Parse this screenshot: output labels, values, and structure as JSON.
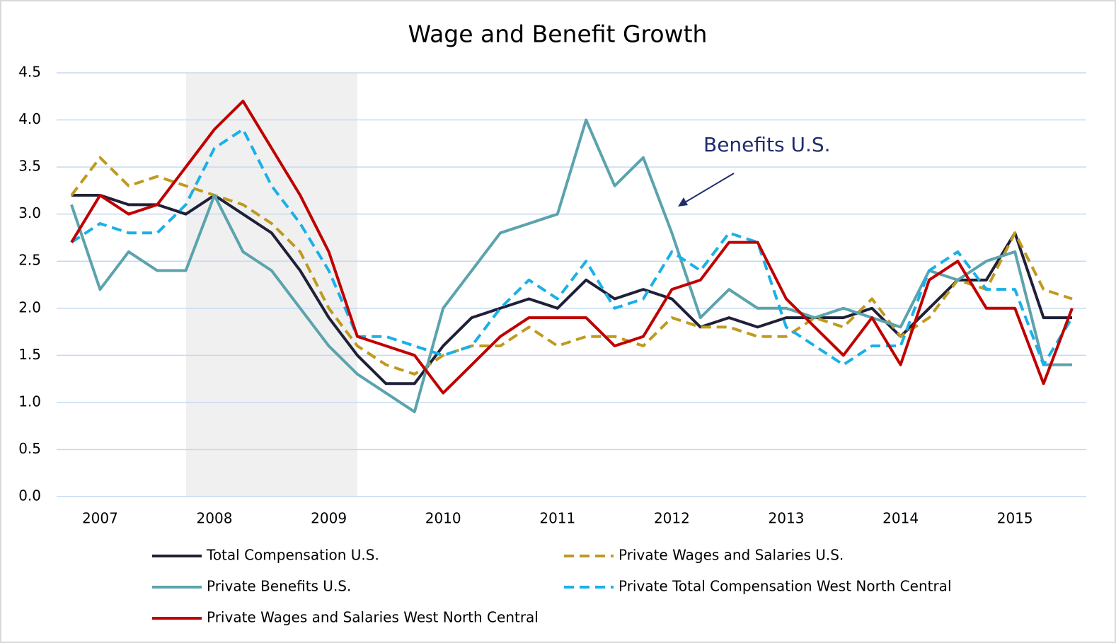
{
  "chart_data": {
    "type": "line",
    "title": "Wage and Benefit Growth",
    "annotation": "Benefits U.S.",
    "categories": [
      null,
      "2007",
      null,
      null,
      null,
      "2008",
      null,
      null,
      null,
      "2009",
      null,
      null,
      null,
      "2010",
      null,
      null,
      null,
      "2011",
      null,
      null,
      null,
      "2012",
      null,
      null,
      null,
      "2013",
      null,
      null,
      null,
      "2014",
      null,
      null,
      null,
      "2015",
      null,
      null
    ],
    "series": [
      {
        "name": "Total Compensation U.S.",
        "color": "#1f2038",
        "style": "solid",
        "values": [
          3.2,
          3.2,
          3.1,
          3.1,
          3.0,
          3.2,
          3.0,
          2.8,
          2.4,
          1.9,
          1.5,
          1.2,
          1.2,
          1.6,
          1.9,
          2.0,
          2.1,
          2.0,
          2.3,
          2.1,
          2.2,
          2.1,
          1.8,
          1.9,
          1.8,
          1.9,
          1.9,
          1.9,
          2.0,
          1.7,
          2.0,
          2.3,
          2.3,
          2.8,
          1.9,
          1.9
        ]
      },
      {
        "name": "Private Wages and Salaries U.S.",
        "color": "#bf9a1e",
        "style": "dashed",
        "values": [
          3.2,
          3.6,
          3.3,
          3.4,
          3.3,
          3.2,
          3.1,
          2.9,
          2.6,
          2.0,
          1.6,
          1.4,
          1.3,
          1.5,
          1.6,
          1.6,
          1.8,
          1.6,
          1.7,
          1.7,
          1.6,
          1.9,
          1.8,
          1.8,
          1.7,
          1.7,
          1.9,
          1.8,
          2.1,
          1.7,
          1.9,
          2.3,
          2.2,
          2.8,
          2.2,
          2.1
        ]
      },
      {
        "name": "Private Benefits U.S.",
        "color": "#5ba3ad",
        "style": "solid",
        "values": [
          3.1,
          2.2,
          2.6,
          2.4,
          2.4,
          3.2,
          2.6,
          2.4,
          2.0,
          1.6,
          1.3,
          1.1,
          0.9,
          2.0,
          2.4,
          2.8,
          2.9,
          3.0,
          4.0,
          3.3,
          3.6,
          2.8,
          1.9,
          2.2,
          2.0,
          2.0,
          1.9,
          2.0,
          1.9,
          1.8,
          2.4,
          2.3,
          2.5,
          2.6,
          1.4,
          1.4
        ]
      },
      {
        "name": "Private Total Compensation West North Central",
        "color": "#1ab0e8",
        "style": "dashed",
        "values": [
          2.7,
          2.9,
          2.8,
          2.8,
          3.1,
          3.7,
          3.9,
          3.3,
          2.9,
          2.4,
          1.7,
          1.7,
          1.6,
          1.5,
          1.6,
          2.0,
          2.3,
          2.1,
          2.5,
          2.0,
          2.1,
          2.6,
          2.4,
          2.8,
          2.7,
          1.8,
          1.6,
          1.4,
          1.6,
          1.6,
          2.4,
          2.6,
          2.2,
          2.2,
          1.4,
          1.9
        ]
      },
      {
        "name": "Private Wages and Salaries West North Central",
        "color": "#c00000",
        "style": "solid",
        "values": [
          2.7,
          3.2,
          3.0,
          3.1,
          3.5,
          3.9,
          4.2,
          3.7,
          3.2,
          2.6,
          1.7,
          1.6,
          1.5,
          1.1,
          1.4,
          1.7,
          1.9,
          1.9,
          1.9,
          1.6,
          1.7,
          2.2,
          2.3,
          2.7,
          2.7,
          2.1,
          1.8,
          1.5,
          1.9,
          1.4,
          2.3,
          2.5,
          2.0,
          2.0,
          1.2,
          2.0
        ]
      }
    ],
    "ylim": [
      0,
      4.5
    ],
    "yticks": [
      {
        "value": 0,
        "label": "0.0"
      },
      {
        "value": 0.5,
        "label": "0.5"
      },
      {
        "value": 1,
        "label": "1.0"
      },
      {
        "value": 1.5,
        "label": "1.5"
      },
      {
        "value": 2,
        "label": "2.0"
      },
      {
        "value": 2.5,
        "label": "2.5"
      },
      {
        "value": 3,
        "label": "3.0"
      },
      {
        "value": 3.5,
        "label": "3.5"
      },
      {
        "value": 4,
        "label": "4.0"
      },
      {
        "value": 4.5,
        "label": "4.5"
      }
    ],
    "grid": true,
    "legend": "bottom"
  }
}
